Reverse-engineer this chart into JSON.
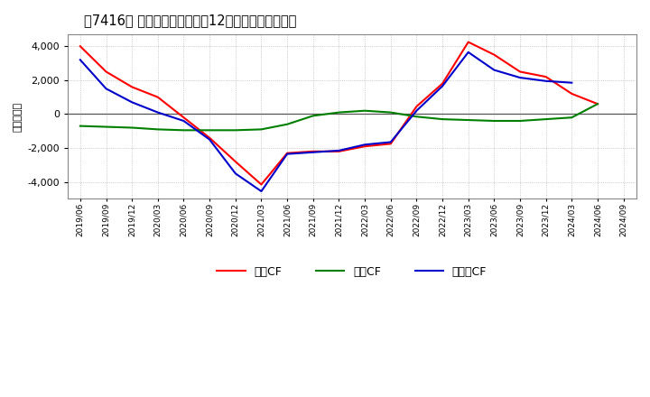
{
  "title": "　7416、 キャッシュフローの12か月移動合計の推移",
  "ylabel": "（百万円）",
  "background_color": "#ffffff",
  "grid_color": "#aaaaaa",
  "legend_labels": [
    "営業CF",
    "投資CF",
    "フリーCF"
  ],
  "legend_colors": [
    "#ff0000",
    "#008000",
    "#0000cc"
  ],
  "dates": [
    "2019/06",
    "2019/09",
    "2019/12",
    "2020/03",
    "2020/06",
    "2020/09",
    "2020/12",
    "2021/03",
    "2021/06",
    "2021/09",
    "2021/12",
    "2022/03",
    "2022/06",
    "2022/09",
    "2022/12",
    "2023/03",
    "2023/06",
    "2023/09",
    "2023/12",
    "2024/03",
    "2024/06",
    "2024/09"
  ],
  "operating_cf": [
    4000,
    2500,
    1600,
    1000,
    -200,
    -1400,
    -2800,
    -4150,
    -2300,
    -2200,
    -2200,
    -1900,
    -1750,
    450,
    1800,
    4250,
    3500,
    2500,
    2200,
    1200,
    600,
    null
  ],
  "investing_cf": [
    -700,
    -750,
    -800,
    -900,
    -950,
    -950,
    -950,
    -900,
    -600,
    -100,
    100,
    200,
    100,
    -150,
    -300,
    -350,
    -400,
    -400,
    -300,
    -200,
    600,
    null
  ],
  "free_cf": [
    3200,
    1500,
    700,
    100,
    -400,
    -1500,
    -3500,
    -4550,
    -2350,
    -2250,
    -2150,
    -1800,
    -1650,
    200,
    1650,
    3650,
    2600,
    2150,
    1950,
    1850,
    null,
    null
  ],
  "ylim": [
    -5000,
    4700
  ],
  "yticks": [
    -4000,
    -2000,
    0,
    2000,
    4000
  ],
  "line_width": 1.5
}
